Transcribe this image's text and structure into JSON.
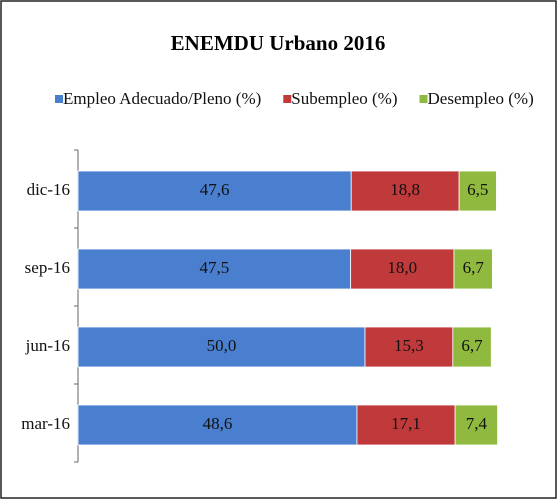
{
  "chart_data": {
    "type": "stacked-bar-horizontal",
    "title": "ENEMDU Urbano 2016",
    "categories": [
      "dic-16",
      "sep-16",
      "jun-16",
      "mar-16"
    ],
    "series": [
      {
        "name": "Empleo Adecuado/Pleno (%)",
        "color": "#4a7fd0",
        "values": [
          47.6,
          47.5,
          50.0,
          48.6
        ],
        "value_labels": [
          "47,6",
          "47,5",
          "50,0",
          "48,6"
        ]
      },
      {
        "name": "Subempleo (%)",
        "color": "#c0393b",
        "values": [
          18.8,
          18.0,
          15.3,
          17.1
        ],
        "value_labels": [
          "18,8",
          "18,0",
          "15,3",
          "17,1"
        ]
      },
      {
        "name": "Desempleo (%)",
        "color": "#8fba3f",
        "values": [
          6.5,
          6.7,
          6.7,
          7.4
        ],
        "value_labels": [
          "6,5",
          "6,7",
          "6,7",
          "7,4"
        ]
      }
    ]
  }
}
